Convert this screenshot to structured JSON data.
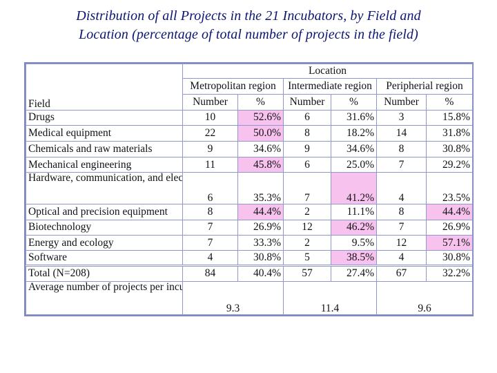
{
  "title": {
    "line1": "Distribution of all Projects in the 21 Incubators, by Field and",
    "line2": "Location (percentage of total number of projects in the field)"
  },
  "table": {
    "location_header": "Location",
    "field_header": "Field",
    "regions": [
      "Metropolitan region",
      "Intermediate region",
      "Peripherial region"
    ],
    "number_label": "Number",
    "percent_label": "%",
    "rows": [
      {
        "field": " Drugs",
        "cells": [
          {
            "n": "10",
            "p": "52.6%",
            "hl": true
          },
          {
            "n": "6",
            "p": "31.6%",
            "hl": false
          },
          {
            "n": "3",
            "p": "15.8%",
            "hl": false
          }
        ]
      },
      {
        "field": "  Medical equipment",
        "cells": [
          {
            "n": "22",
            "p": "50.0%",
            "hl": true
          },
          {
            "n": "8",
            "p": "18.2%",
            "hl": false
          },
          {
            "n": "14",
            "p": "31.8%",
            "hl": false
          }
        ]
      },
      {
        "field": "Chemicals and raw materials",
        "cells": [
          {
            "n": "9",
            "p": "34.6%",
            "hl": false
          },
          {
            "n": "9",
            "p": "34.6%",
            "hl": false
          },
          {
            "n": "8",
            "p": "30.8%",
            "hl": false
          }
        ]
      },
      {
        "field": "Mechanical engineering",
        "cells": [
          {
            "n": "11",
            "p": "45.8%",
            "hl": true
          },
          {
            "n": "6",
            "p": "25.0%",
            "hl": false
          },
          {
            "n": "7",
            "p": "29.2%",
            "hl": false
          }
        ]
      },
      {
        "field": "Hardware, communication, and electronic components",
        "cells": [
          {
            "n": "6",
            "p": "35.3%",
            "hl": false
          },
          {
            "n": "7",
            "p": "41.2%",
            "hl": true
          },
          {
            "n": "4",
            "p": "23.5%",
            "hl": false
          }
        ]
      },
      {
        "field": "Optical and precision equipment",
        "cells": [
          {
            "n": "8",
            "p": "44.4%",
            "hl": true
          },
          {
            "n": "2",
            "p": "11.1%",
            "hl": false
          },
          {
            "n": "8",
            "p": "44.4%",
            "hl": true
          }
        ]
      },
      {
        "field": "Biotechnology",
        "cells": [
          {
            "n": "7",
            "p": "26.9%",
            "hl": false
          },
          {
            "n": "12",
            "p": "46.2%",
            "hl": true
          },
          {
            "n": "7",
            "p": "26.9%",
            "hl": false
          }
        ]
      },
      {
        "field": "Energy and ecology",
        "cells": [
          {
            "n": "7",
            "p": "33.3%",
            "hl": false
          },
          {
            "n": "2",
            "p": "9.5%",
            "hl": false
          },
          {
            "n": "12",
            "p": "57.1%",
            "hl": true
          }
        ]
      },
      {
        "field": "Software",
        "cells": [
          {
            "n": "4",
            "p": "30.8%",
            "hl": false
          },
          {
            "n": "5",
            "p": "38.5%",
            "hl": true
          },
          {
            "n": "4",
            "p": "30.8%",
            "hl": false
          }
        ]
      }
    ],
    "total": {
      "field": "Total (N=208)",
      "cells": [
        {
          "n": "84",
          "p": "40.4%"
        },
        {
          "n": "57",
          "p": "27.4%"
        },
        {
          "n": "67",
          "p": "32.2%"
        }
      ]
    },
    "average": {
      "field": "Average number of projects per incubator",
      "values": [
        "9.3",
        "11.4",
        "9.6"
      ]
    }
  },
  "colors": {
    "title": "#0c1670",
    "highlight": "#f7c2ee",
    "border": "#8f97cc"
  }
}
